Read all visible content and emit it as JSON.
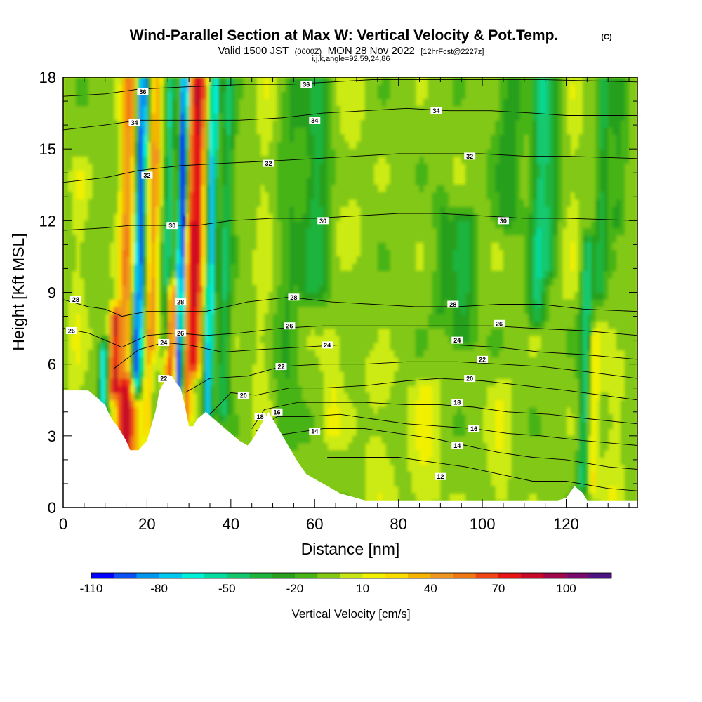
{
  "header": {
    "title_main": "Wind-Parallel Section at Max W: Vertical Velocity & Pot.Temp.",
    "title_mark": "(C)",
    "subtitle_a": "Valid 1500 JST",
    "subtitle_b": "(0600Z)",
    "subtitle_c": "MON 28 Nov 2022",
    "subtitle_d": "[12hrFcst@2227z]",
    "indices": "i,j,k,angle=92,59,24,86"
  },
  "chart_data": {
    "type": "heatmap",
    "title": "Wind-Parallel Section at Max W: Vertical Velocity & Pot.Temp.",
    "xlabel": "Distance [nm]",
    "ylabel": "Height [Kft MSL]",
    "xlim": [
      0,
      137
    ],
    "ylim": [
      0,
      18
    ],
    "x_ticks": [
      0,
      20,
      40,
      60,
      80,
      100,
      120
    ],
    "y_ticks": [
      0,
      3,
      6,
      9,
      12,
      15,
      18
    ],
    "colorbar": {
      "label": "Vertical Velocity [cm/s]",
      "tick_values": [
        -110,
        -80,
        -50,
        -20,
        10,
        40,
        70,
        100
      ],
      "levels": [
        -110,
        -100,
        -90,
        -80,
        -70,
        -60,
        -50,
        -40,
        -30,
        -20,
        -10,
        0,
        10,
        20,
        30,
        40,
        50,
        60,
        70,
        80,
        90,
        100,
        110
      ],
      "colors": [
        "#0000ff",
        "#0a50f5",
        "#0096f0",
        "#00c8f0",
        "#00f0d8",
        "#00dca0",
        "#12c86e",
        "#1eb43c",
        "#28a01e",
        "#46b414",
        "#82c814",
        "#c8e614",
        "#f0f000",
        "#fadc00",
        "#f5b400",
        "#f0961e",
        "#f07814",
        "#f04614",
        "#e61414",
        "#c80a28",
        "#a0064b",
        "#780a6e",
        "#4b1482"
      ]
    },
    "terrain_kft": [
      [
        0,
        4.9
      ],
      [
        6,
        4.9
      ],
      [
        8,
        4.6
      ],
      [
        10,
        4.3
      ],
      [
        11,
        3.9
      ],
      [
        12,
        3.6
      ],
      [
        13,
        3.4
      ],
      [
        14,
        3.1
      ],
      [
        15,
        2.8
      ],
      [
        16,
        2.4
      ],
      [
        18,
        2.4
      ],
      [
        20,
        2.8
      ],
      [
        21,
        3.4
      ],
      [
        22,
        4.0
      ],
      [
        23,
        4.9
      ],
      [
        24,
        5.2
      ],
      [
        25,
        5.5
      ],
      [
        26,
        5.5
      ],
      [
        27,
        5.2
      ],
      [
        28,
        5.0
      ],
      [
        29,
        4.3
      ],
      [
        30,
        3.4
      ],
      [
        31,
        3.4
      ],
      [
        32,
        3.7
      ],
      [
        34,
        4.0
      ],
      [
        36,
        3.7
      ],
      [
        38,
        3.4
      ],
      [
        40,
        3.1
      ],
      [
        42,
        2.8
      ],
      [
        44,
        2.6
      ],
      [
        45,
        2.8
      ],
      [
        47,
        3.4
      ],
      [
        49,
        4.0
      ],
      [
        50,
        3.7
      ],
      [
        52,
        3.1
      ],
      [
        54,
        2.5
      ],
      [
        56,
        1.9
      ],
      [
        58,
        1.4
      ],
      [
        60,
        1.2
      ],
      [
        62,
        1.0
      ],
      [
        66,
        0.6
      ],
      [
        70,
        0.4
      ],
      [
        72,
        0.3
      ],
      [
        118,
        0.3
      ],
      [
        120,
        0.4
      ],
      [
        122,
        0.9
      ],
      [
        124,
        0.6
      ],
      [
        125,
        0.3
      ],
      [
        137,
        0.3
      ]
    ],
    "theta_contours": [
      {
        "label": "12",
        "pts": [
          [
            63,
            2.1
          ],
          [
            72,
            2.1
          ],
          [
            80,
            2.1
          ],
          [
            88,
            1.9
          ],
          [
            96,
            1.7
          ],
          [
            104,
            1.4
          ],
          [
            112,
            1.1
          ],
          [
            120,
            1.1
          ],
          [
            130,
            0.8
          ],
          [
            137,
            0.7
          ]
        ]
      },
      {
        "label": "14",
        "pts": [
          [
            46,
            2.9
          ],
          [
            54,
            3.1
          ],
          [
            62,
            3.3
          ],
          [
            72,
            3.3
          ],
          [
            80,
            3.1
          ],
          [
            88,
            2.9
          ],
          [
            96,
            2.6
          ],
          [
            104,
            2.3
          ],
          [
            112,
            2.1
          ],
          [
            120,
            2.0
          ],
          [
            130,
            1.7
          ],
          [
            137,
            1.6
          ]
        ]
      },
      {
        "label": "16",
        "pts": [
          [
            46,
            3.2
          ],
          [
            51,
            3.8
          ],
          [
            58,
            3.8
          ],
          [
            66,
            3.9
          ],
          [
            74,
            3.7
          ],
          [
            82,
            3.5
          ],
          [
            90,
            3.4
          ],
          [
            98,
            3.3
          ],
          [
            106,
            3.1
          ],
          [
            114,
            3.0
          ],
          [
            124,
            2.8
          ],
          [
            137,
            2.6
          ]
        ]
      },
      {
        "label": "18",
        "pts": [
          [
            45,
            3.3
          ],
          [
            48,
            4.1
          ],
          [
            56,
            4.4
          ],
          [
            64,
            4.4
          ],
          [
            72,
            4.4
          ],
          [
            82,
            4.3
          ],
          [
            90,
            4.3
          ],
          [
            98,
            4.2
          ],
          [
            106,
            4.0
          ],
          [
            116,
            3.9
          ],
          [
            126,
            3.7
          ],
          [
            137,
            3.5
          ]
        ]
      },
      {
        "label": "20",
        "pts": [
          [
            35,
            3.9
          ],
          [
            40,
            4.8
          ],
          [
            46,
            4.7
          ],
          [
            54,
            5.0
          ],
          [
            62,
            5.0
          ],
          [
            72,
            5.1
          ],
          [
            82,
            5.3
          ],
          [
            90,
            5.4
          ],
          [
            100,
            5.3
          ],
          [
            110,
            5.1
          ],
          [
            120,
            4.9
          ],
          [
            137,
            4.5
          ]
        ]
      },
      {
        "label": "22",
        "pts": [
          [
            29,
            4.8
          ],
          [
            35,
            5.4
          ],
          [
            44,
            5.5
          ],
          [
            52,
            5.9
          ],
          [
            62,
            6.0
          ],
          [
            72,
            6.0
          ],
          [
            82,
            6.1
          ],
          [
            94,
            6.1
          ],
          [
            104,
            6.0
          ],
          [
            114,
            5.9
          ],
          [
            124,
            5.7
          ],
          [
            137,
            5.4
          ]
        ]
      },
      {
        "label": "24",
        "pts": [
          [
            12,
            5.8
          ],
          [
            18,
            6.6
          ],
          [
            24,
            6.9
          ],
          [
            30,
            6.8
          ],
          [
            38,
            6.5
          ],
          [
            46,
            6.6
          ],
          [
            56,
            6.7
          ],
          [
            66,
            6.8
          ],
          [
            76,
            6.8
          ],
          [
            86,
            6.8
          ],
          [
            94,
            6.8
          ],
          [
            104,
            6.7
          ],
          [
            114,
            6.5
          ],
          [
            124,
            6.4
          ],
          [
            137,
            6.2
          ]
        ]
      },
      {
        "label": "26",
        "pts": [
          [
            0,
            7.5
          ],
          [
            6,
            7.3
          ],
          [
            10,
            7.0
          ],
          [
            14,
            6.7
          ],
          [
            20,
            7.2
          ],
          [
            27,
            7.3
          ],
          [
            34,
            7.2
          ],
          [
            42,
            7.3
          ],
          [
            52,
            7.5
          ],
          [
            62,
            7.6
          ],
          [
            72,
            7.6
          ],
          [
            82,
            7.6
          ],
          [
            92,
            7.6
          ],
          [
            102,
            7.6
          ],
          [
            112,
            7.5
          ],
          [
            124,
            7.4
          ],
          [
            137,
            7.2
          ]
        ]
      },
      {
        "label": "28",
        "pts": [
          [
            0,
            8.7
          ],
          [
            6,
            8.4
          ],
          [
            10,
            8.3
          ],
          [
            14,
            8.0
          ],
          [
            20,
            8.2
          ],
          [
            27,
            8.2
          ],
          [
            34,
            8.2
          ],
          [
            44,
            8.6
          ],
          [
            54,
            8.8
          ],
          [
            64,
            8.6
          ],
          [
            74,
            8.5
          ],
          [
            84,
            8.4
          ],
          [
            94,
            8.4
          ],
          [
            104,
            8.5
          ],
          [
            114,
            8.5
          ],
          [
            124,
            8.3
          ],
          [
            137,
            8.2
          ]
        ]
      },
      {
        "label": "30",
        "pts": [
          [
            0,
            11.6
          ],
          [
            10,
            11.7
          ],
          [
            16,
            11.8
          ],
          [
            24,
            11.8
          ],
          [
            32,
            11.8
          ],
          [
            40,
            12.0
          ],
          [
            50,
            12.1
          ],
          [
            60,
            12.1
          ],
          [
            70,
            12.2
          ],
          [
            80,
            12.3
          ],
          [
            90,
            12.3
          ],
          [
            100,
            12.2
          ],
          [
            110,
            12.1
          ],
          [
            120,
            12.1
          ],
          [
            137,
            12.0
          ]
        ]
      },
      {
        "label": "32",
        "pts": [
          [
            0,
            13.6
          ],
          [
            10,
            13.8
          ],
          [
            18,
            14.1
          ],
          [
            28,
            14.3
          ],
          [
            38,
            14.4
          ],
          [
            50,
            14.5
          ],
          [
            60,
            14.6
          ],
          [
            70,
            14.7
          ],
          [
            80,
            14.8
          ],
          [
            90,
            14.8
          ],
          [
            100,
            14.8
          ],
          [
            110,
            14.7
          ],
          [
            120,
            14.7
          ],
          [
            137,
            14.6
          ]
        ]
      },
      {
        "label": "34",
        "pts": [
          [
            0,
            15.8
          ],
          [
            10,
            16.0
          ],
          [
            18,
            16.2
          ],
          [
            30,
            16.2
          ],
          [
            42,
            16.2
          ],
          [
            52,
            16.3
          ],
          [
            62,
            16.5
          ],
          [
            72,
            16.6
          ],
          [
            82,
            16.7
          ],
          [
            92,
            16.6
          ],
          [
            102,
            16.6
          ],
          [
            112,
            16.5
          ],
          [
            120,
            16.4
          ],
          [
            137,
            16.4
          ]
        ]
      },
      {
        "label": "36",
        "pts": [
          [
            0,
            17.2
          ],
          [
            10,
            17.3
          ],
          [
            18,
            17.5
          ],
          [
            30,
            17.6
          ],
          [
            44,
            17.7
          ],
          [
            54,
            17.7
          ],
          [
            64,
            17.8
          ],
          [
            74,
            17.9
          ],
          [
            84,
            17.9
          ],
          [
            94,
            17.9
          ],
          [
            104,
            17.9
          ],
          [
            114,
            17.9
          ],
          [
            137,
            17.8
          ]
        ]
      }
    ],
    "contour_labels": [
      {
        "text": "36",
        "x": 19,
        "y": 17.4
      },
      {
        "text": "36",
        "x": 58,
        "y": 17.7
      },
      {
        "text": "34",
        "x": 17,
        "y": 16.1
      },
      {
        "text": "34",
        "x": 60,
        "y": 16.2
      },
      {
        "text": "34",
        "x": 89,
        "y": 16.6
      },
      {
        "text": "32",
        "x": 20,
        "y": 13.9
      },
      {
        "text": "32",
        "x": 49,
        "y": 14.4
      },
      {
        "text": "32",
        "x": 97,
        "y": 14.7
      },
      {
        "text": "30",
        "x": 26,
        "y": 11.8
      },
      {
        "text": "30",
        "x": 62,
        "y": 12.0
      },
      {
        "text": "30",
        "x": 105,
        "y": 12.0
      },
      {
        "text": "28",
        "x": 3,
        "y": 8.7
      },
      {
        "text": "28",
        "x": 28,
        "y": 8.6
      },
      {
        "text": "28",
        "x": 55,
        "y": 8.8
      },
      {
        "text": "28",
        "x": 93,
        "y": 8.5
      },
      {
        "text": "26",
        "x": 2,
        "y": 7.4
      },
      {
        "text": "26",
        "x": 28,
        "y": 7.3
      },
      {
        "text": "26",
        "x": 54,
        "y": 7.6
      },
      {
        "text": "26",
        "x": 104,
        "y": 7.7
      },
      {
        "text": "24",
        "x": 24,
        "y": 6.9
      },
      {
        "text": "24",
        "x": 63,
        "y": 6.8
      },
      {
        "text": "24",
        "x": 94,
        "y": 7.0
      },
      {
        "text": "22",
        "x": 52,
        "y": 5.9
      },
      {
        "text": "22",
        "x": 100,
        "y": 6.2
      },
      {
        "text": "22",
        "x": 24,
        "y": 5.4
      },
      {
        "text": "20",
        "x": 43,
        "y": 4.7
      },
      {
        "text": "20",
        "x": 97,
        "y": 5.4
      },
      {
        "text": "18",
        "x": 47,
        "y": 3.8
      },
      {
        "text": "18",
        "x": 94,
        "y": 4.4
      },
      {
        "text": "16",
        "x": 51,
        "y": 4.0
      },
      {
        "text": "16",
        "x": 98,
        "y": 3.3
      },
      {
        "text": "14",
        "x": 60,
        "y": 3.2
      },
      {
        "text": "14",
        "x": 94,
        "y": 2.6
      },
      {
        "text": "12",
        "x": 90,
        "y": 1.3
      }
    ]
  }
}
